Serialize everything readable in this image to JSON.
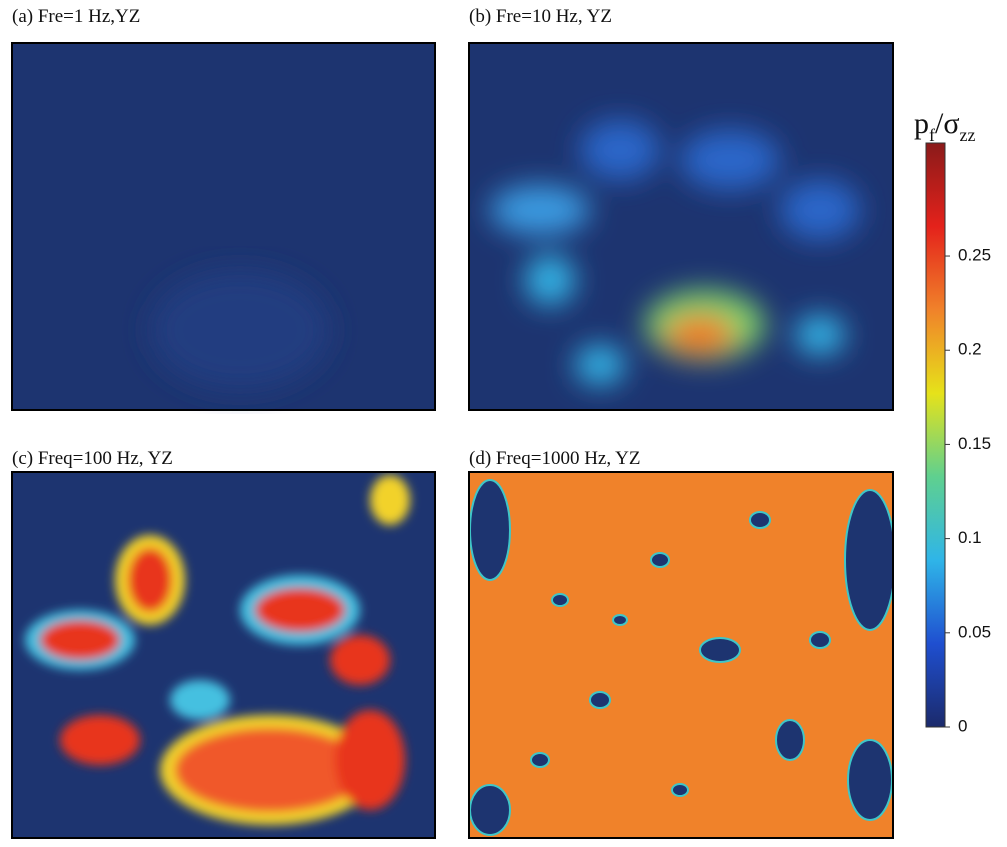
{
  "chart_data": {
    "type": "heatmap",
    "panels": [
      "(a) Fre=1 Hz,YZ",
      "(b) Fre=10 Hz, YZ",
      "(c) Freq=100 Hz, YZ",
      "(d) Freq=1000 Hz, YZ"
    ],
    "colorbar_label": [
      "p",
      "f",
      "/σ",
      "zz"
    ],
    "clim": [
      0,
      0.31
    ],
    "cticks": [
      0,
      0.05,
      0.1,
      0.15,
      0.2,
      0.25
    ],
    "colormap": [
      "#1b2a6b",
      "#1f4fd0",
      "#2fb5e8",
      "#5fd08f",
      "#e6e21a",
      "#f0822a",
      "#e4221b",
      "#8a1a1a"
    ]
  }
}
